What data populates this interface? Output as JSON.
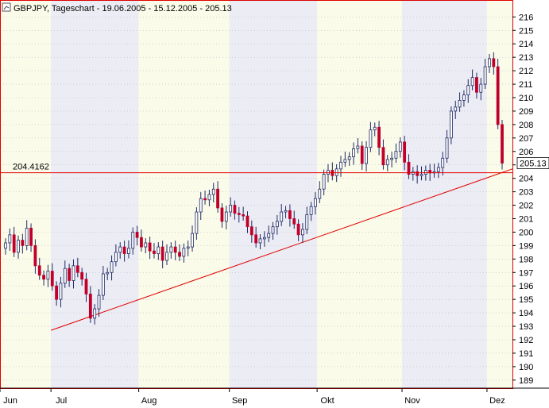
{
  "header": {
    "title": "GBPJPY, Tageschart - 19.06.2005 - 15.12.2005 - 205.13",
    "icon": "chart-settings-icon"
  },
  "chart_data": {
    "type": "candlestick",
    "title": "GBPJPY, Tageschart - 19.06.2005 - 15.12.2005 - 205.13",
    "ylim": [
      188.4,
      217.2
    ],
    "y_ticks": [
      189,
      190,
      191,
      192,
      193,
      194,
      195,
      196,
      197,
      198,
      199,
      200,
      201,
      202,
      203,
      204,
      205,
      206,
      207,
      208,
      209,
      210,
      211,
      212,
      213,
      214,
      215,
      216
    ],
    "x_ticks": [
      {
        "label": "Jun",
        "date": "2005-06-19"
      },
      {
        "label": "Jul",
        "date": "2005-07-07"
      },
      {
        "label": "Aug",
        "date": "2005-08-07"
      },
      {
        "label": "Sep",
        "date": "2005-09-08"
      },
      {
        "label": "Okt",
        "date": "2005-10-09"
      },
      {
        "label": "Nov",
        "date": "2005-11-08"
      },
      {
        "label": "Dez",
        "date": "2005-12-08"
      }
    ],
    "x_range": [
      "2005-06-19",
      "2005-12-17"
    ],
    "grid": true,
    "last_price": {
      "label": "205.13",
      "value": 205.13
    },
    "horizontal_line": {
      "label": "204.4162",
      "value": 204.4162,
      "color": "#e00000"
    },
    "trendline": {
      "from": {
        "date": "2005-07-07",
        "value": 192.7
      },
      "to": {
        "date": "2005-12-17",
        "value": 204.7
      },
      "color": "#e00000"
    },
    "candle_colors": {
      "up": "#1f2a66",
      "down": "#c0002a",
      "wick": "#1f2a66"
    },
    "band_colors": {
      "light": "#fbfbea",
      "dark": "#ececf4"
    },
    "series": [
      {
        "name": "GBPJPY",
        "values": [
          199.2,
          199.8,
          198.5,
          199.4,
          199.0,
          200.3,
          199.0,
          197.5,
          196.8,
          196.5,
          197.1,
          196.0,
          195.0,
          196.2,
          197.3,
          196.4,
          197.5,
          197.0,
          196.5,
          195.4,
          193.6,
          194.3,
          195.3,
          196.9,
          197.0,
          197.8,
          198.5,
          198.9,
          198.4,
          198.8,
          200.0,
          199.6,
          198.9,
          199.2,
          198.6,
          198.4,
          198.9,
          197.9,
          198.5,
          198.9,
          198.5,
          198.2,
          198.8,
          198.9,
          199.9,
          201.5,
          202.5,
          202.4,
          202.8,
          203.2,
          201.8,
          200.8,
          201.5,
          202.0,
          201.4,
          201.3,
          201.2,
          200.4,
          199.8,
          199.2,
          199.5,
          199.6,
          199.9,
          200.4,
          200.8,
          201.5,
          201.6,
          201.0,
          200.6,
          199.8,
          200.2,
          201.3,
          201.9,
          202.5,
          203.2,
          204.3,
          204.6,
          204.2,
          204.7,
          205.2,
          205.4,
          205.6,
          206.2,
          206.4,
          205.1,
          206.3,
          207.6,
          207.8,
          206.3,
          205.0,
          205.4,
          205.5,
          206.0,
          206.7,
          205.2,
          204.3,
          204.5,
          204.2,
          204.3,
          204.6,
          204.4,
          204.5,
          204.8,
          205.5,
          207.0,
          209.0,
          209.3,
          209.8,
          210.2,
          210.9,
          211.5,
          210.4,
          211.0,
          212.3,
          212.9,
          212.3,
          208.0,
          205.13
        ]
      }
    ]
  }
}
